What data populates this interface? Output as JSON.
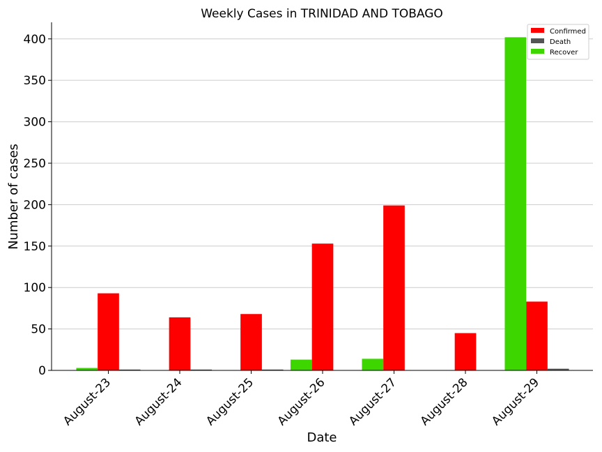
{
  "chart_data": {
    "type": "bar",
    "title": "Weekly Cases in TRINIDAD AND TOBAGO",
    "xlabel": "Date",
    "ylabel": "Number of cases",
    "categories": [
      "August-23",
      "August-24",
      "August-25",
      "August-26",
      "August-27",
      "August-28",
      "August-29"
    ],
    "ylim": [
      0,
      420
    ],
    "yticks": [
      0,
      50,
      100,
      150,
      200,
      250,
      300,
      350,
      400
    ],
    "grid": "horizontal",
    "legend_position": "top-right",
    "series": [
      {
        "name": "Confirmed",
        "color": "#ff0000",
        "values": [
          93,
          64,
          68,
          153,
          199,
          45,
          83
        ]
      },
      {
        "name": "Death",
        "color": "#555555",
        "values": [
          1,
          1,
          1,
          0,
          0,
          0,
          2
        ]
      },
      {
        "name": "Recover",
        "color": "#3dd600",
        "values": [
          3,
          0,
          0,
          13,
          14,
          0,
          402
        ]
      }
    ]
  }
}
